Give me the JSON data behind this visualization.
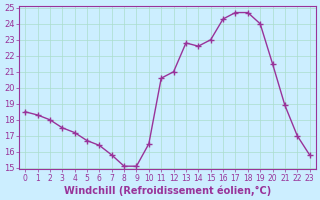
{
  "x": [
    0,
    1,
    2,
    3,
    4,
    5,
    6,
    7,
    8,
    9,
    10,
    11,
    12,
    13,
    14,
    15,
    16,
    17,
    18,
    19,
    20,
    21,
    22,
    23
  ],
  "y": [
    18.5,
    18.3,
    18.0,
    17.5,
    17.2,
    16.7,
    16.4,
    15.8,
    15.1,
    15.1,
    16.5,
    20.6,
    21.0,
    22.8,
    22.6,
    23.0,
    24.3,
    24.7,
    24.7,
    24.0,
    21.5,
    18.9,
    17.0,
    15.8
  ],
  "line_color": "#993399",
  "marker": "+",
  "marker_size": 4,
  "bg_color": "#cceeff",
  "grid_color": "#aaddcc",
  "xlabel": "Windchill (Refroidissement éolien,°C)",
  "ylim": [
    15,
    25
  ],
  "xlim_min": -0.5,
  "xlim_max": 23.5,
  "yticks": [
    15,
    16,
    17,
    18,
    19,
    20,
    21,
    22,
    23,
    24,
    25
  ],
  "xticks": [
    0,
    1,
    2,
    3,
    4,
    5,
    6,
    7,
    8,
    9,
    10,
    11,
    12,
    13,
    14,
    15,
    16,
    17,
    18,
    19,
    20,
    21,
    22,
    23
  ],
  "tick_labelsize": 6,
  "xlabel_fontsize": 7,
  "axis_color": "#993399",
  "linewidth": 1.0
}
